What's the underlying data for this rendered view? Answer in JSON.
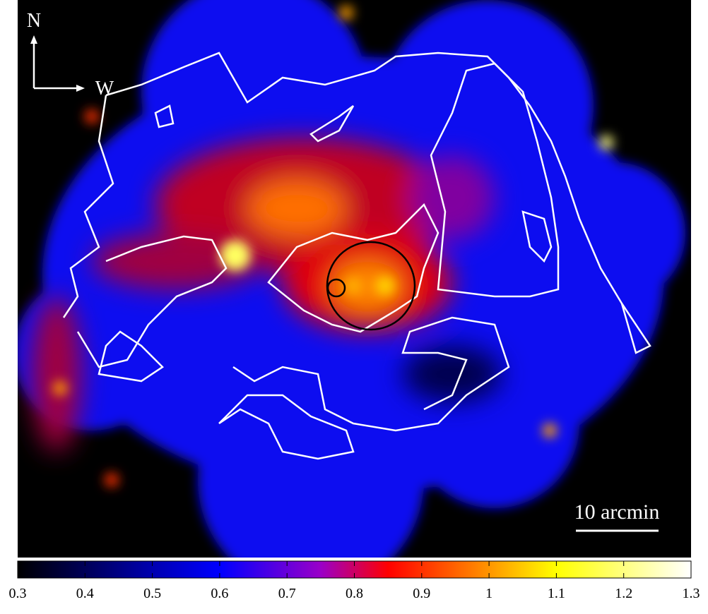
{
  "image": {
    "compass": {
      "north": "N",
      "west": "W"
    },
    "scale_bar": "10 arcmin",
    "colorbar": {
      "lim": [
        0.3,
        1.3
      ],
      "ticks": [
        0.3,
        0.4,
        0.5,
        0.6,
        0.7,
        0.8,
        0.9,
        1,
        1.1,
        1.2,
        1.3
      ]
    }
  }
}
